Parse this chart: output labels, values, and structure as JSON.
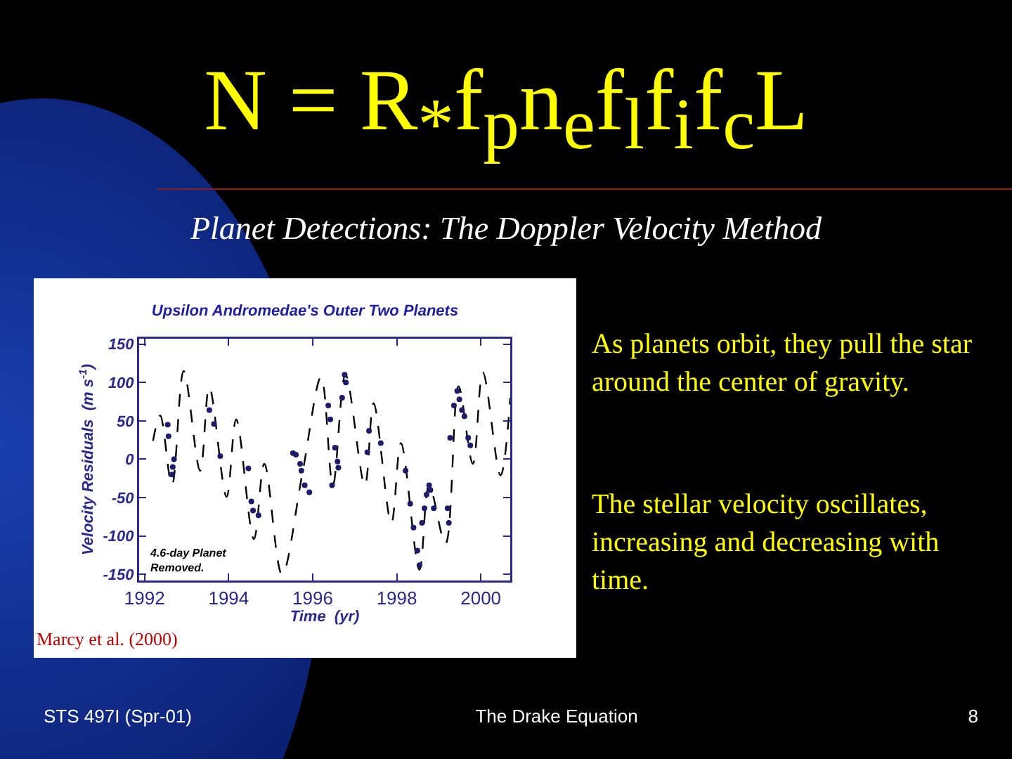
{
  "chart_data": {
    "type": "line",
    "title": "Upsilon Andromedae's Outer Two Planets",
    "xlabel": "Time  (yr)",
    "ylabel": "Velocity Residuals  (m s$^{-1}$)",
    "xlim": [
      1991.87,
      2000.7
    ],
    "xticks": [
      1992,
      1994,
      1996,
      1998,
      2000
    ],
    "ylim": [
      -158,
      157
    ],
    "yticks": [
      -150,
      -100,
      -50,
      0,
      50,
      100,
      150
    ],
    "grid": false,
    "series": [
      {
        "type": "line",
        "color": "#000000",
        "line_style": "dashed",
        "marker": "none",
        "x": [
          1992.2,
          1992.37,
          1992.65,
          1992.93,
          1993.32,
          1993.54,
          1993.95,
          1994.18,
          1994.6,
          1994.85,
          1995.27,
          1995.75,
          1996.2,
          1996.48,
          1996.78,
          1997.24,
          1997.45,
          1997.87,
          1998.1,
          1998.54,
          1998.77,
          1999.16,
          1999.47,
          1999.81,
          2000.05,
          2000.47,
          2000.7
        ],
        "values": [
          24,
          57,
          -34,
          115,
          -15,
          94,
          -49,
          52,
          -104,
          -6,
          -150,
          -20,
          107,
          -34,
          110,
          -34,
          73,
          -83,
          21,
          -144,
          -34,
          -110,
          95,
          -6,
          113,
          -21,
          80
        ]
      },
      {
        "type": "scatter",
        "color": "#1f1b6b",
        "marker": "circle",
        "x": [
          1992.55,
          1992.57,
          1992.65,
          1992.67,
          1992.7,
          1993.54,
          1993.65,
          1993.8,
          1994.47,
          1994.54,
          1994.58,
          1994.71,
          1995.53,
          1995.6,
          1995.7,
          1995.73,
          1995.81,
          1995.92,
          1996.37,
          1996.42,
          1996.46,
          1996.53,
          1996.59,
          1996.61,
          1996.7,
          1996.76,
          1996.79,
          1997.3,
          1997.34,
          1997.62,
          1998.21,
          1998.32,
          1998.4,
          1998.49,
          1998.54,
          1998.6,
          1998.66,
          1998.71,
          1998.77,
          1998.8,
          1998.88,
          1999.21,
          1999.24,
          1999.27,
          1999.36,
          1999.44,
          1999.49,
          1999.55,
          1999.61,
          1999.7,
          1999.75
        ],
        "values": [
          45,
          30,
          -20,
          -10,
          0,
          64,
          46,
          4,
          -12,
          -55,
          -67,
          -73,
          8,
          6,
          -6,
          -15,
          -34,
          -43,
          70,
          52,
          -34,
          15,
          -3,
          -11,
          80,
          110,
          100,
          9,
          37,
          21,
          -15,
          -58,
          -89,
          -119,
          -138,
          -83,
          -64,
          -46,
          -34,
          -40,
          -64,
          -64,
          -83,
          28,
          70,
          89,
          78,
          64,
          56,
          28,
          18
        ]
      }
    ],
    "annotations": [
      "N = R$_{*}$f$_{p}$n$_{e}$f$_{l}$f$_{i}$f$_{c}$L",
      "Planet Detections: The Doppler Velocity Method",
      "4.6-day Planet Removed.",
      "Marcy et al. (2000)",
      "As planets orbit, they pull the star around the center of gravity.",
      "The stellar velocity oscillates, increasing and decreasing with time.",
      "STS 497I (Spr-01)",
      "The Drake Equation",
      "8"
    ]
  }
}
